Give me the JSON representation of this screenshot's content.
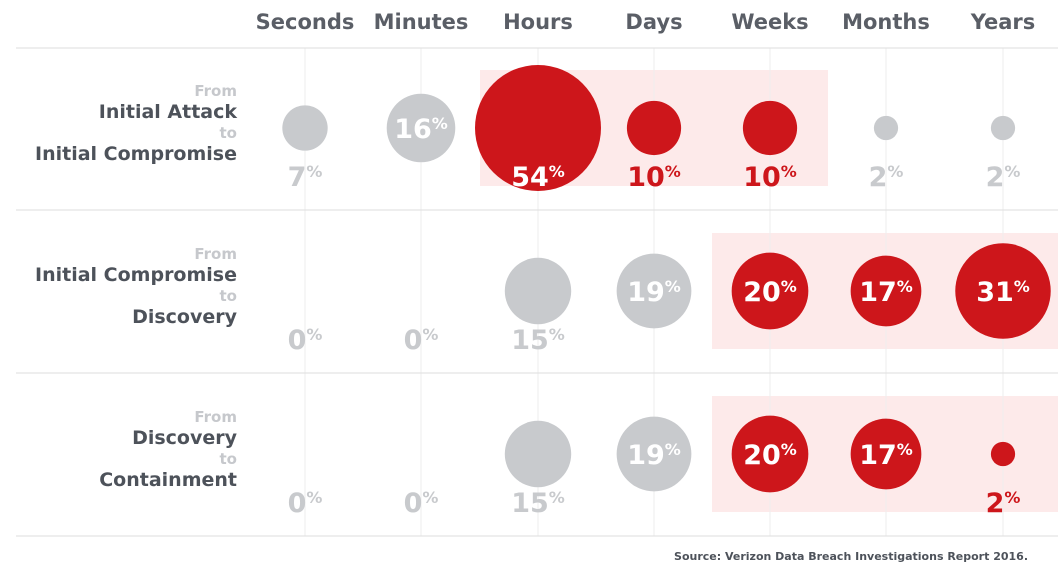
{
  "colors": {
    "highlight": "#cd161b",
    "muted": "#c8cacd",
    "highlight_band": "#fdeaea",
    "header_text": "#5a5e66",
    "label_text": "#4d525a",
    "connector_text": "#c6c8cc",
    "white": "#ffffff"
  },
  "chart_data": {
    "type": "bubble-matrix",
    "columns": [
      "Seconds",
      "Minutes",
      "Hours",
      "Days",
      "Weeks",
      "Months",
      "Years"
    ],
    "rows": [
      {
        "from_word": "From",
        "from_label": "Initial Attack",
        "to_word": "to",
        "to_label": "Initial Compromise",
        "values": [
          7,
          16,
          54,
          10,
          10,
          2,
          2
        ],
        "highlight_range": [
          "Hours",
          "Weeks"
        ]
      },
      {
        "from_word": "From",
        "from_label": "Initial Compromise",
        "to_word": "to",
        "to_label": "Discovery",
        "values": [
          0,
          0,
          15,
          19,
          20,
          17,
          31
        ],
        "highlight_range": [
          "Weeks",
          "Years"
        ]
      },
      {
        "from_word": "From",
        "from_label": "Discovery",
        "to_word": "to",
        "to_label": "Containment",
        "values": [
          0,
          0,
          15,
          19,
          20,
          17,
          2
        ],
        "highlight_range": [
          "Weeks",
          "Years"
        ]
      }
    ],
    "unit": "%",
    "source": "Source: Verizon Data Breach Investigations Report 2016."
  }
}
